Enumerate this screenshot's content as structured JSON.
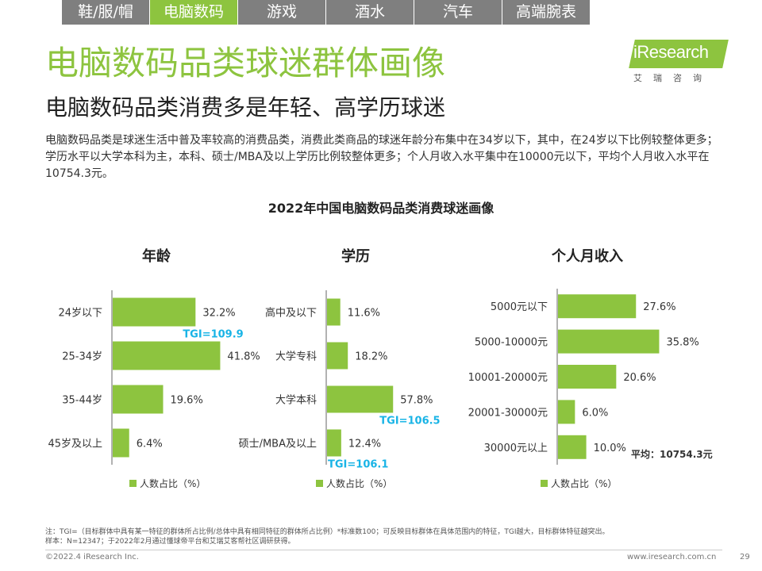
{
  "tabs": [
    {
      "label": "鞋/服/帽",
      "active": false
    },
    {
      "label": "电脑数码",
      "active": true
    },
    {
      "label": "游戏",
      "active": false
    },
    {
      "label": "酒水",
      "active": false
    },
    {
      "label": "汽车",
      "active": false
    },
    {
      "label": "高端腕表",
      "active": false
    }
  ],
  "logo": {
    "text": "iResearch",
    "sub": "艾瑞咨询"
  },
  "page_title": "电脑数码品类球迷群体画像",
  "sub_title": "电脑数码品类消费多是年轻、高学历球迷",
  "description": "电脑数码品类是球迷生活中普及率较高的消费品类，消费此类商品的球迷年龄分布集中在34岁以下，其中，在24岁以下比例较整体更多；学历水平以大学本科为主，本科、硕士/MBA及以上学历比例较整体更多；个人月收入水平集中在10000元以下，平均个人月收入水平在10754.3元。",
  "chart_data": [
    {
      "type": "bar",
      "orientation": "horizontal",
      "title": "年龄",
      "categories": [
        "24岁以下",
        "25-34岁",
        "35-44岁",
        "45岁及以上"
      ],
      "values": [
        32.2,
        41.8,
        19.6,
        6.4
      ],
      "value_labels": [
        "32.2%",
        "41.8%",
        "19.6%",
        "6.4%"
      ],
      "tgi": [
        {
          "category_index": 0,
          "label": "TGI=109.9"
        }
      ],
      "legend": "人数占比（%）"
    },
    {
      "type": "bar",
      "orientation": "horizontal",
      "title": "学历",
      "categories": [
        "高中及以下",
        "大学专科",
        "大学本科",
        "硕士/MBA及以上"
      ],
      "values": [
        11.6,
        18.2,
        57.8,
        12.4
      ],
      "value_labels": [
        "11.6%",
        "18.2%",
        "57.8%",
        "12.4%"
      ],
      "tgi": [
        {
          "category_index": 2,
          "label": "TGI=106.5"
        },
        {
          "category_index": 3,
          "label": "TGI=106.1"
        }
      ],
      "legend": "人数占比（%）"
    },
    {
      "type": "bar",
      "orientation": "horizontal",
      "title": "个人月收入",
      "categories": [
        "5000元以下",
        "5000-10000元",
        "10001-20000元",
        "20001-30000元",
        "30000元以上"
      ],
      "values": [
        27.6,
        35.8,
        20.6,
        6.0,
        10.0
      ],
      "value_labels": [
        "27.6%",
        "35.8%",
        "20.6%",
        "6.0%",
        "10.0%"
      ],
      "tgi": [],
      "legend": "人数占比（%）",
      "average_label": "平均：10754.3元"
    }
  ],
  "chart_title": "2022年中国电脑数码品类消费球迷画像",
  "colors": {
    "accent": "#8dc43f",
    "tgi": "#19b4e6",
    "tab_inactive": "#7f7f7f",
    "axis": "#666666"
  },
  "note_line1": "注：TGI=（目标群体中具有某一特征的群体所占比例/总体中具有相同特征的群体所占比例）*标准数100；可反映目标群体在具体范围内的特征，TGI越大，目标群体特征越突出。",
  "note_line2": "样本：N=12347；于2022年2月通过懂球帝平台和艾瑞艾客帮社区调研获得。",
  "copyright": "©2022.4 iResearch Inc.",
  "website": "www.iresearch.com.cn",
  "page_number": "29"
}
